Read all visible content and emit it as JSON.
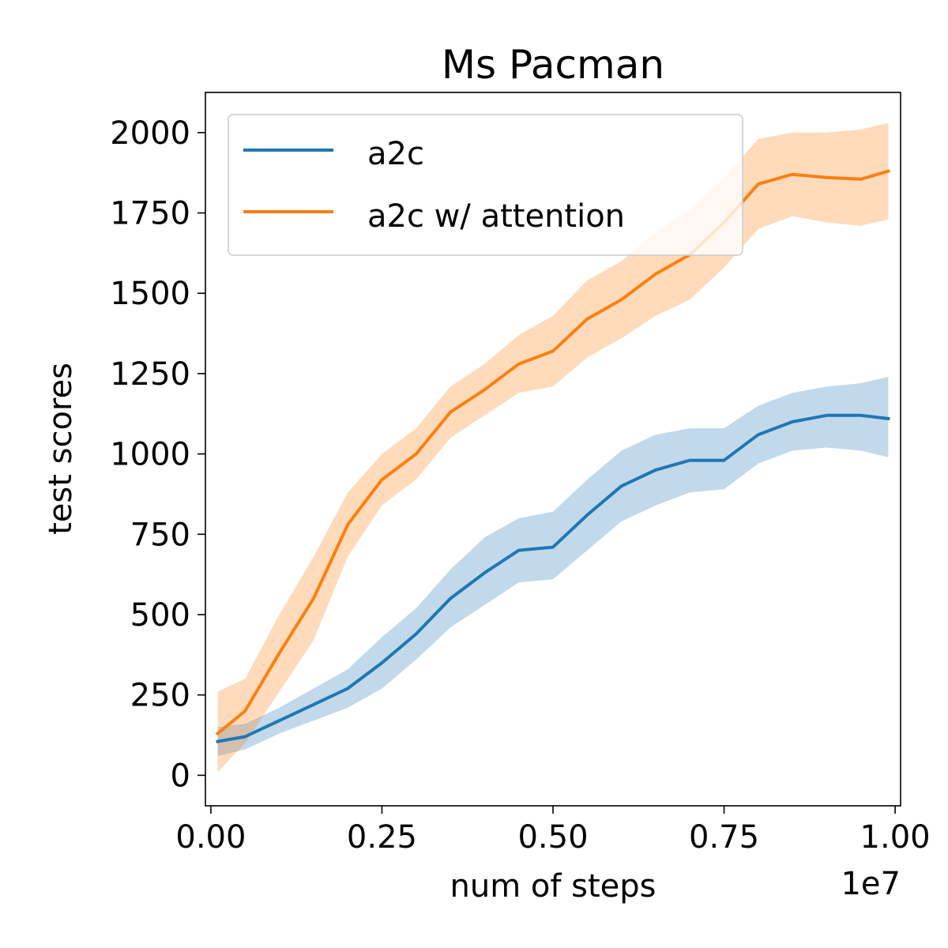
{
  "chart_data": {
    "type": "line",
    "title": "Ms Pacman",
    "xlabel": "num of steps",
    "ylabel": "test scores",
    "x_offset_label": "1e7",
    "xlim": [
      -0.008,
      1.008
    ],
    "ylim": [
      -95,
      2125
    ],
    "xticks": [
      0.0,
      0.25,
      0.5,
      0.75,
      1.0
    ],
    "xtick_labels": [
      "0.00",
      "0.25",
      "0.50",
      "0.75",
      "1.00"
    ],
    "yticks": [
      0,
      250,
      500,
      750,
      1000,
      1250,
      1500,
      1750,
      2000
    ],
    "ytick_labels": [
      "0",
      "250",
      "500",
      "750",
      "1000",
      "1250",
      "1500",
      "1750",
      "2000"
    ],
    "grid": false,
    "legend_position": "top-left",
    "series": [
      {
        "name": "a2c",
        "color": "#1f77b4",
        "points": [
          [
            0.01,
            105,
            60,
            150
          ],
          [
            0.05,
            120,
            80,
            160
          ],
          [
            0.1,
            170,
            130,
            210
          ],
          [
            0.15,
            220,
            170,
            270
          ],
          [
            0.2,
            270,
            210,
            330
          ],
          [
            0.25,
            350,
            270,
            430
          ],
          [
            0.3,
            440,
            360,
            520
          ],
          [
            0.35,
            550,
            460,
            640
          ],
          [
            0.4,
            630,
            530,
            740
          ],
          [
            0.45,
            700,
            600,
            800
          ],
          [
            0.5,
            710,
            610,
            820
          ],
          [
            0.55,
            810,
            700,
            920
          ],
          [
            0.6,
            900,
            790,
            1010
          ],
          [
            0.65,
            950,
            840,
            1060
          ],
          [
            0.7,
            980,
            880,
            1080
          ],
          [
            0.75,
            980,
            890,
            1080
          ],
          [
            0.8,
            1060,
            970,
            1150
          ],
          [
            0.85,
            1100,
            1010,
            1190
          ],
          [
            0.9,
            1120,
            1020,
            1210
          ],
          [
            0.95,
            1120,
            1010,
            1220
          ],
          [
            0.99,
            1110,
            990,
            1240
          ]
        ]
      },
      {
        "name": "a2c w/ attention",
        "color": "#ff7f0e",
        "points": [
          [
            0.01,
            130,
            10,
            260
          ],
          [
            0.05,
            200,
            100,
            300
          ],
          [
            0.1,
            380,
            260,
            500
          ],
          [
            0.15,
            550,
            420,
            680
          ],
          [
            0.2,
            780,
            680,
            880
          ],
          [
            0.25,
            920,
            840,
            1000
          ],
          [
            0.3,
            1000,
            920,
            1080
          ],
          [
            0.35,
            1130,
            1050,
            1210
          ],
          [
            0.4,
            1200,
            1120,
            1280
          ],
          [
            0.45,
            1280,
            1190,
            1370
          ],
          [
            0.5,
            1320,
            1210,
            1430
          ],
          [
            0.55,
            1420,
            1300,
            1540
          ],
          [
            0.6,
            1480,
            1360,
            1600
          ],
          [
            0.65,
            1560,
            1430,
            1690
          ],
          [
            0.7,
            1620,
            1480,
            1760
          ],
          [
            0.75,
            1720,
            1580,
            1860
          ],
          [
            0.8,
            1840,
            1700,
            1980
          ],
          [
            0.85,
            1870,
            1740,
            2000
          ],
          [
            0.9,
            1860,
            1720,
            2000
          ],
          [
            0.95,
            1855,
            1710,
            2010
          ],
          [
            0.99,
            1880,
            1730,
            2030
          ]
        ]
      }
    ]
  }
}
